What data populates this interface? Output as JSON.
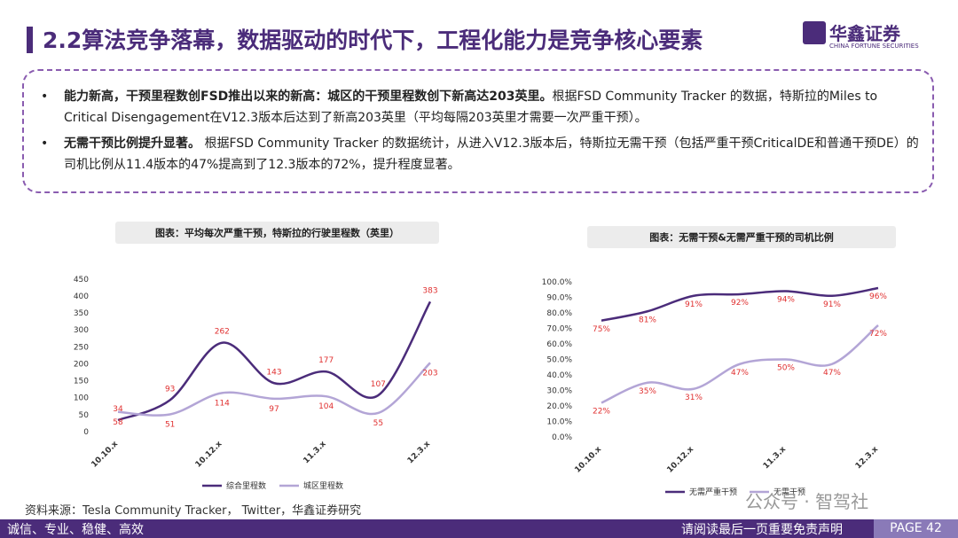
{
  "header": {
    "title": "2.2算法竞争落幕，数据驱动的时代下，工程化能力是竞争核心要素",
    "logo": "华鑫证券",
    "logo_en": "CHINA FORTUNE SECURITIES"
  },
  "bullets": [
    {
      "lead": "能力新高，干预里程数创FSD推出以来的新高：城区的干预里程数创下新高达203英里。",
      "text": "根据FSD Community Tracker 的数据，特斯拉的Miles to Critical Disengagement在V12.3版本后达到了新高203英里（平均每隔203英里才需要一次严重干预）。"
    },
    {
      "lead": "无需干预比例提升显著。",
      "text": " 根据FSD Community Tracker 的数据统计，从进入V12.3版本后，特斯拉无需干预（包括严重干预CriticalDE和普通干预DE）的司机比例从11.4版本的47%提高到了12.3版本的72%，提升程度显著。"
    }
  ],
  "chart_data": [
    {
      "type": "line",
      "title": "图表：平均每次严重干预，特斯拉的行驶里程数（英里）",
      "categories": [
        "10.10.x",
        null,
        "10.12.x",
        null,
        "11.3.x",
        null,
        "12.3.x"
      ],
      "series": [
        {
          "name": "综合里程数",
          "color": "#4b2c7a",
          "values": [
            34,
            93,
            262,
            143,
            177,
            107,
            383
          ]
        },
        {
          "name": "城区里程数",
          "color": "#b3a5d6",
          "values": [
            58,
            51,
            114,
            97,
            104,
            55,
            203
          ]
        }
      ],
      "ylim": [
        0,
        450
      ],
      "yticks": [
        0,
        50,
        100,
        150,
        200,
        250,
        300,
        350,
        400,
        450
      ],
      "grid": false,
      "legend": "bottom"
    },
    {
      "type": "line",
      "title": "图表：无需干预&无需严重干预的司机比例",
      "categories": [
        "10.10.x",
        null,
        "10.12.x",
        null,
        "11.3.x",
        null,
        "12.3.x"
      ],
      "series": [
        {
          "name": "无需严重干预",
          "color": "#4b2c7a",
          "values": [
            75,
            81,
            91,
            92,
            94,
            91,
            96
          ],
          "value_labels": [
            "75%",
            "81%",
            "91%",
            "92%",
            "94%",
            "91%",
            "96%"
          ]
        },
        {
          "name": "无需干预",
          "color": "#b3a5d6",
          "values": [
            22,
            35,
            31,
            47,
            50,
            47,
            72
          ],
          "value_labels": [
            "22%",
            "35%",
            "31%",
            "47%",
            "50%",
            "47%",
            "72%"
          ]
        }
      ],
      "ylim": [
        0,
        100
      ],
      "yticks": [
        {
          "value": 0,
          "label": "0.0%"
        },
        {
          "value": 10,
          "label": "10.0%"
        },
        {
          "value": 20,
          "label": "20.0%"
        },
        {
          "value": 30,
          "label": "30.0%"
        },
        {
          "value": 40,
          "label": "40.0%"
        },
        {
          "value": 50,
          "label": "50.0%"
        },
        {
          "value": 60,
          "label": "60.0%"
        },
        {
          "value": 70,
          "label": "70.0%"
        },
        {
          "value": 80,
          "label": "80.0%"
        },
        {
          "value": 90,
          "label": "90.0%"
        },
        {
          "value": 100,
          "label": "100.0%"
        }
      ],
      "grid": false,
      "legend": "bottom"
    }
  ],
  "source": "资料来源：Tesla Community Tracker， Twitter，华鑫证券研究",
  "watermark": "公众号 · 智驾社",
  "footer": {
    "motto": "诚信、专业、稳健、高效",
    "disclaimer": "请阅读最后一页重要免责声明",
    "page": "PAGE 42"
  }
}
